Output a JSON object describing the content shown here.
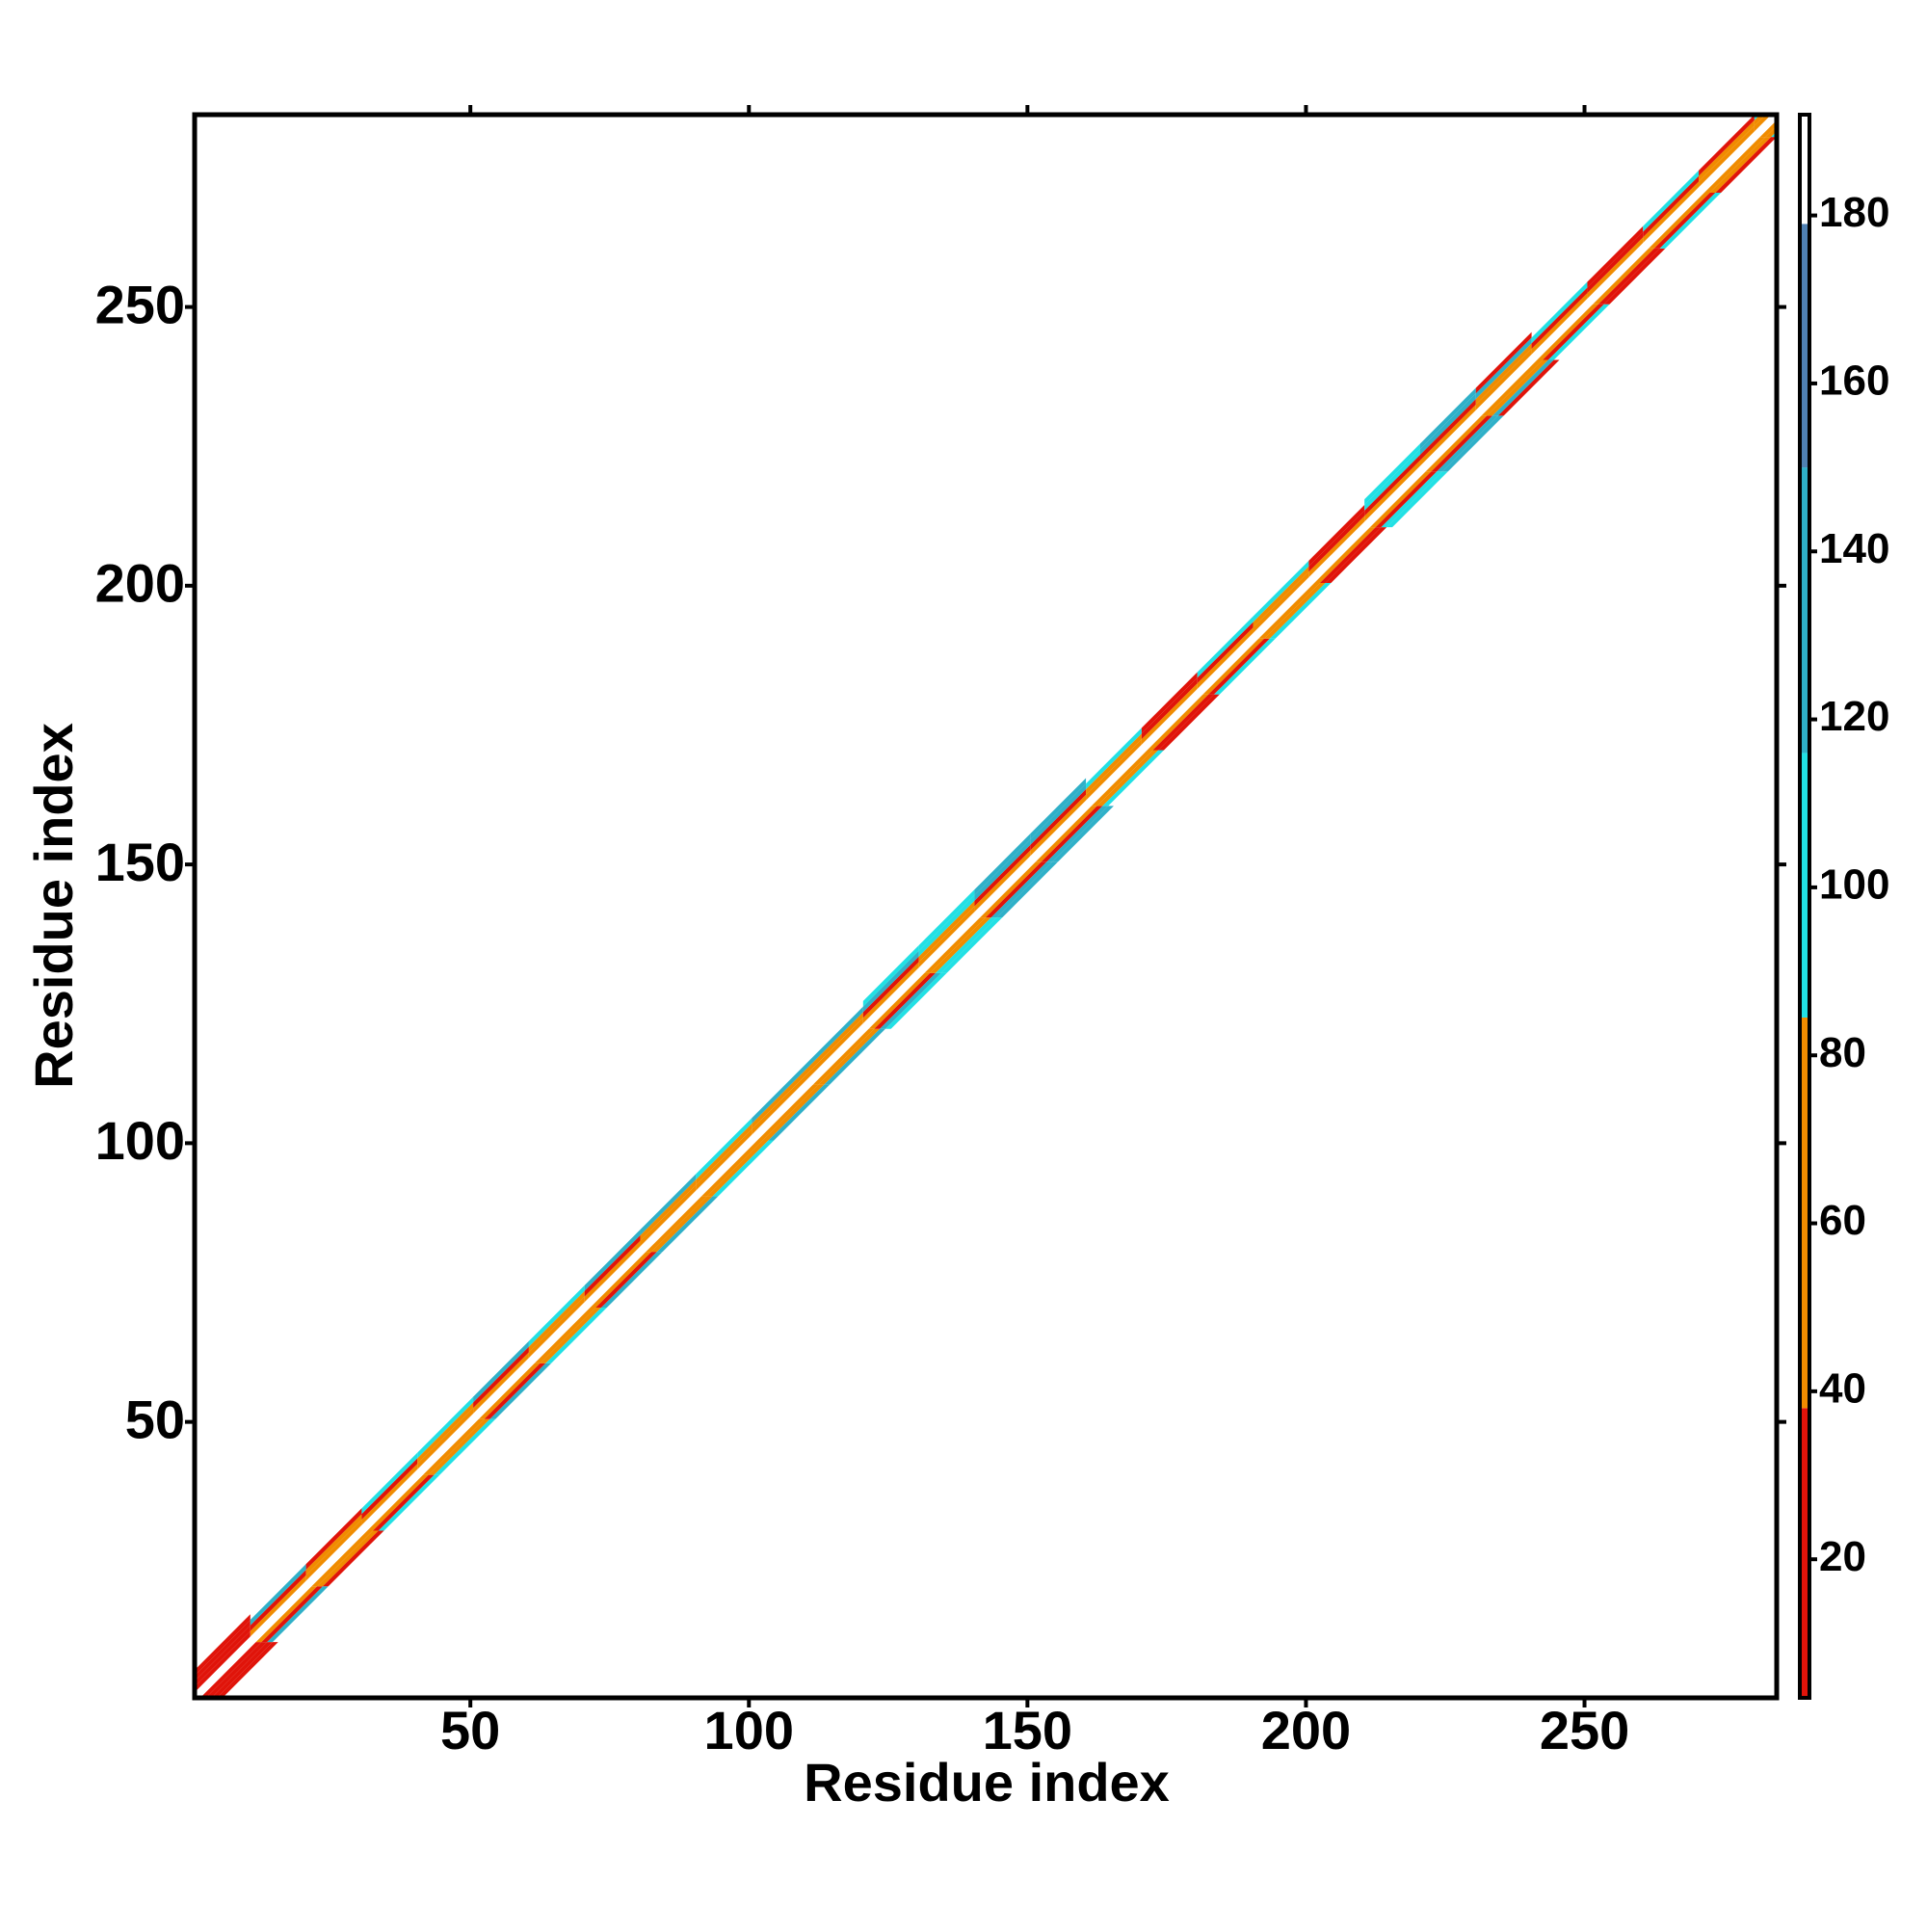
{
  "chart_data": {
    "type": "heatmap",
    "x_label": "Residue index",
    "y_label": "Residue index",
    "xlim": [
      0.5,
      284.5
    ],
    "ylim": [
      0.5,
      284.5
    ],
    "xticks": [
      50,
      100,
      150,
      200,
      250
    ],
    "yticks": [
      50,
      100,
      150,
      200,
      250
    ],
    "segment_starts": [
      1,
      11,
      21,
      31,
      41,
      51,
      61,
      71,
      81,
      91,
      101,
      111,
      121,
      131,
      141,
      151,
      161,
      171,
      181,
      191,
      201,
      211,
      221,
      231,
      241,
      251,
      261,
      271,
      281
    ],
    "segment_length": 10,
    "offsets": [
      0,
      1,
      2,
      3,
      4
    ],
    "z": [
      [
        190,
        190,
        190,
        190,
        190,
        190,
        190,
        190,
        190,
        190,
        190,
        190,
        190,
        190,
        190,
        190,
        190,
        190,
        190,
        190,
        190,
        190,
        190,
        190,
        190,
        190,
        190,
        190,
        190
      ],
      [
        30,
        62,
        58,
        65,
        60,
        70,
        55,
        62,
        68,
        60,
        64,
        58,
        66,
        60,
        62,
        70,
        58,
        64,
        60,
        62,
        66,
        58,
        64,
        60,
        68,
        62,
        58,
        64,
        60
      ],
      [
        20,
        25,
        45,
        30,
        70,
        28,
        75,
        32,
        72,
        65,
        68,
        50,
        35,
        40,
        30,
        22,
        70,
        26,
        33,
        72,
        24,
        30,
        22,
        65,
        28,
        25,
        30,
        70,
        60
      ],
      [
        15,
        140,
        18,
        100,
        105,
        120,
        95,
        140,
        130,
        100,
        135,
        120,
        140,
        100,
        145,
        150,
        100,
        18,
        100,
        110,
        18,
        100,
        140,
        135,
        100,
        18,
        100,
        20,
        100
      ],
      [
        12,
        null,
        null,
        null,
        null,
        null,
        null,
        null,
        null,
        null,
        null,
        null,
        100,
        98,
        150,
        140,
        null,
        null,
        null,
        null,
        null,
        100,
        140,
        20,
        null,
        null,
        null,
        null,
        null
      ]
    ],
    "colorbar": {
      "edges": [
        3.5,
        38,
        84.5,
        116,
        150,
        179,
        192
      ],
      "colors": [
        "#e0140a",
        "#f08c00",
        "#22e0e4",
        "#2fb0c8",
        "#4f80b2",
        "#ffffff"
      ],
      "ticks": [
        20,
        40,
        60,
        80,
        100,
        120,
        140,
        160,
        180
      ]
    }
  }
}
